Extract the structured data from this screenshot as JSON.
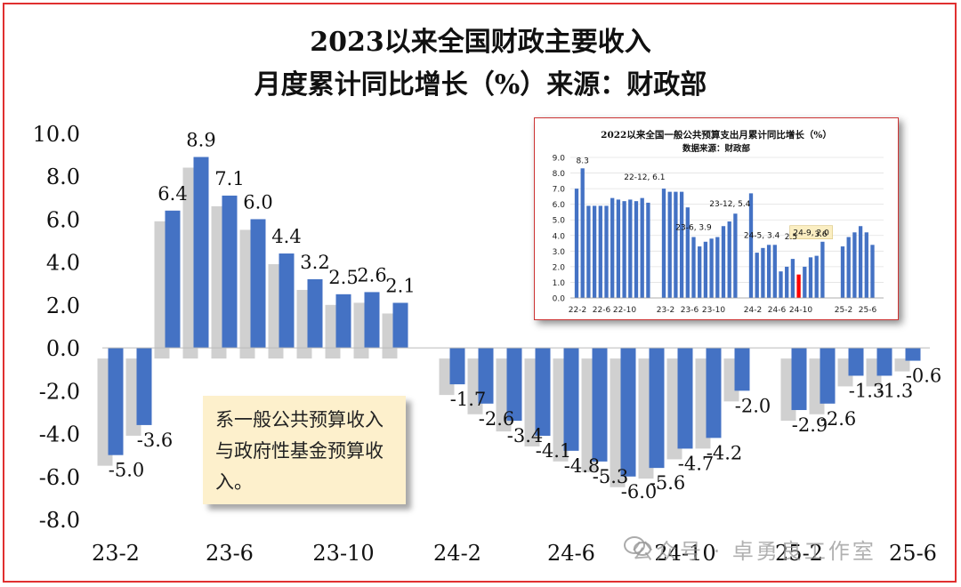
{
  "title_line1": "2023以来全国财政主要收入",
  "title_line2": "月度累计同比增长（%）来源：财政部",
  "note_text": "系一般公共预算收入与政府性基金预算收入。",
  "watermark": "公众号 · 卓勇良工作室",
  "colors": {
    "bar": "#4472c4",
    "highlight": "#ff0000",
    "frame": "#e03030",
    "note_bg": "#fdf0cc"
  },
  "chart_data": [
    {
      "type": "bar",
      "title": "",
      "ylim": [
        -8,
        10
      ],
      "yticks": [
        "10.0",
        "8.0",
        "6.0",
        "4.0",
        "2.0",
        "0.0",
        "-2.0",
        "-4.0",
        "-6.0",
        "-8.0"
      ],
      "xtick_labels": [
        "23-2",
        "23-6",
        "23-10",
        "24-2",
        "24-6",
        "24-10",
        "25-2",
        "25-6"
      ],
      "groups": [
        {
          "year": "2023",
          "categories": [
            "23-2",
            "23-3",
            "23-4",
            "23-5",
            "23-6",
            "23-7",
            "23-8",
            "23-9",
            "23-10",
            "23-11",
            "23-12"
          ],
          "values": [
            -5.0,
            -3.6,
            6.4,
            8.9,
            7.1,
            6.0,
            4.4,
            3.2,
            2.5,
            2.6,
            2.1
          ]
        },
        {
          "year": "2024",
          "categories": [
            "24-2",
            "24-3",
            "24-4",
            "24-5",
            "24-6",
            "24-7",
            "24-8",
            "24-9",
            "24-10",
            "24-11",
            "24-12"
          ],
          "values": [
            -1.7,
            -2.6,
            -3.4,
            -4.1,
            -4.8,
            -5.3,
            -6.0,
            -5.6,
            -4.7,
            -4.2,
            -2.0
          ]
        },
        {
          "year": "2025",
          "categories": [
            "25-2",
            "25-3",
            "25-4",
            "25-5",
            "25-6"
          ],
          "values": [
            -2.9,
            -2.6,
            -1.3,
            -1.3,
            -0.6
          ]
        }
      ],
      "data_labels": [
        "-5.0",
        "-3.6",
        "6.4",
        "8.9",
        "7.1",
        "6.0",
        "4.4",
        "3.2",
        "2.5",
        "2.6",
        "2.1",
        "-1.7",
        "-2.6",
        "-3.4",
        "-4.1",
        "-4.8",
        "-5.3",
        "-6.0",
        "-5.6",
        "-4.7",
        "-4.2",
        "-2.0",
        "-2.9",
        "-2.6",
        "-1.3",
        "-1.3",
        "-0.6"
      ]
    },
    {
      "type": "bar",
      "title": "2022以来全国一般公共预算支出月累计同比增长（%）",
      "subtitle": "数据来源：财政部",
      "ylim": [
        0,
        9
      ],
      "yticks": [
        "9.0",
        "8.0",
        "7.0",
        "6.0",
        "5.0",
        "4.0",
        "3.0",
        "2.0",
        "1.0",
        "0.0"
      ],
      "xtick_labels": [
        "22-2",
        "22-6",
        "22-10",
        "23-2",
        "23-6",
        "23-10",
        "24-2",
        "24-6",
        "24-10",
        "25-2",
        "25-6"
      ],
      "groups": [
        {
          "year": "2022",
          "values": [
            7.0,
            8.3,
            5.9,
            5.9,
            5.9,
            5.9,
            6.4,
            6.3,
            6.2,
            6.3,
            6.2,
            6.4,
            6.1
          ]
        },
        {
          "year": "2023",
          "values": [
            7.0,
            6.8,
            6.8,
            6.8,
            5.8,
            3.9,
            3.3,
            3.6,
            3.8,
            3.9,
            4.6,
            4.9,
            5.4
          ]
        },
        {
          "year": "2024",
          "values": [
            6.7,
            2.9,
            3.2,
            3.4,
            3.4,
            1.7,
            2.0,
            2.5,
            1.5,
            2.0,
            2.6,
            2.7,
            3.6
          ]
        },
        {
          "year": "2025",
          "values": [
            3.3,
            3.9,
            4.2,
            4.6,
            4.2,
            3.4
          ]
        }
      ],
      "highlight": {
        "group": 2,
        "index": 8
      },
      "annotations": [
        "8.3",
        "22-12, 6.1",
        "23-6, 3.9",
        "23-12, 5.4",
        "24-5, 3.4",
        "24-9, 2.0",
        "2.5",
        "3.6"
      ]
    }
  ]
}
